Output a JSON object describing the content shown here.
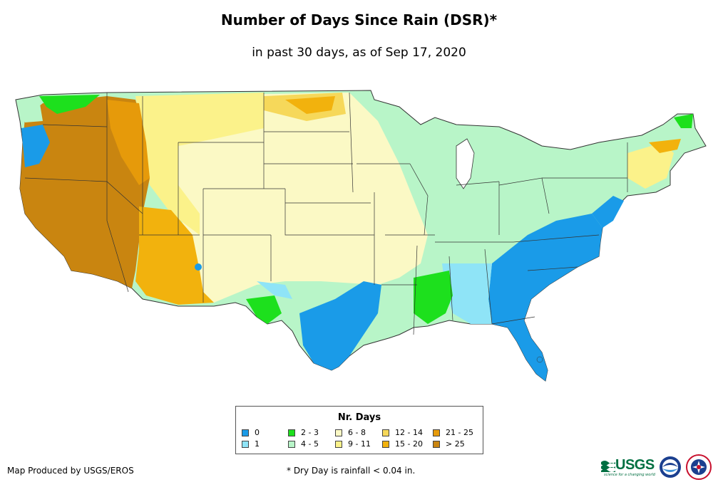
{
  "map": {
    "title": "Number of Days Since Rain (DSR)*",
    "subtitle": "in past 30 days, as of Sep 17, 2020",
    "colors": {
      "0": "#1a9be8",
      "1": "#8fe4f7",
      "2-3": "#1de01d",
      "4-5": "#b8f5c8",
      "6-8": "#fbf9c5",
      "9-11": "#fbf28a",
      "12-14": "#f6d85a",
      "15-20": "#f2b20d",
      "21-25": "#e69a0a",
      ">25": "#c98510"
    }
  },
  "legend": {
    "title": "Nr. Days",
    "items": [
      {
        "label": "0",
        "color": "#1a9be8"
      },
      {
        "label": "1",
        "color": "#8fe4f7"
      },
      {
        "label": "2 - 3",
        "color": "#1de01d"
      },
      {
        "label": "4 - 5",
        "color": "#b8f5c8"
      },
      {
        "label": "6 - 8",
        "color": "#fbf9c5"
      },
      {
        "label": "9 - 11",
        "color": "#fbf28a"
      },
      {
        "label": "12 - 14",
        "color": "#f6d85a"
      },
      {
        "label": "15 - 20",
        "color": "#f2b20d"
      },
      {
        "label": "21 - 25",
        "color": "#e69a0a"
      },
      {
        "label": "> 25",
        "color": "#c98510"
      }
    ]
  },
  "footer": {
    "credit": "Map Produced by USGS/EROS",
    "note": "* Dry Day is rainfall < 0.04 in."
  },
  "logos": {
    "usgs": "USGS",
    "usgs_tagline": "science for a changing world",
    "noaa": "noaa",
    "nws": "National Weather Service"
  }
}
